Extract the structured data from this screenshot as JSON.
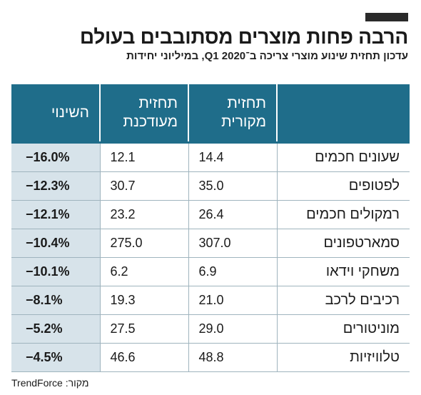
{
  "title": "הרבה פחות מוצרים מסתובבים בעולם",
  "subtitle": "עדכון תחזית שינוע מוצרי צריכה ב־Q1 2020, במיליוני יחידות",
  "source": "מקור: TrendForce",
  "colors": {
    "header": "#1f6d8a",
    "change_column": "#d7e3ea",
    "accent_bar": "#2a2a2a"
  },
  "chart_data": {
    "type": "table",
    "columns": [
      "",
      "תחזית מקורית",
      "תחזית מעודכנת",
      "השינוי"
    ],
    "rows": [
      {
        "name": "שעונים חכמים",
        "original": "14.4",
        "updated": "12.1",
        "change": "−16.0%"
      },
      {
        "name": "לפטופים",
        "original": "35.0",
        "updated": "30.7",
        "change": "−12.3%"
      },
      {
        "name": "רמקולים חכמים",
        "original": "26.4",
        "updated": "23.2",
        "change": "−12.1%"
      },
      {
        "name": "סמארטפונים",
        "original": "307.0",
        "updated": "275.0",
        "change": "−10.4%"
      },
      {
        "name": "משחקי וידאו",
        "original": "6.9",
        "updated": "6.2",
        "change": "−10.1%"
      },
      {
        "name": "רכיבים לרכב",
        "original": "21.0",
        "updated": "19.3",
        "change": "−8.1%"
      },
      {
        "name": "מוניטורים",
        "original": "29.0",
        "updated": "27.5",
        "change": "−5.2%"
      },
      {
        "name": "טלוויזיות",
        "original": "48.8",
        "updated": "46.6",
        "change": "−4.5%"
      }
    ]
  }
}
